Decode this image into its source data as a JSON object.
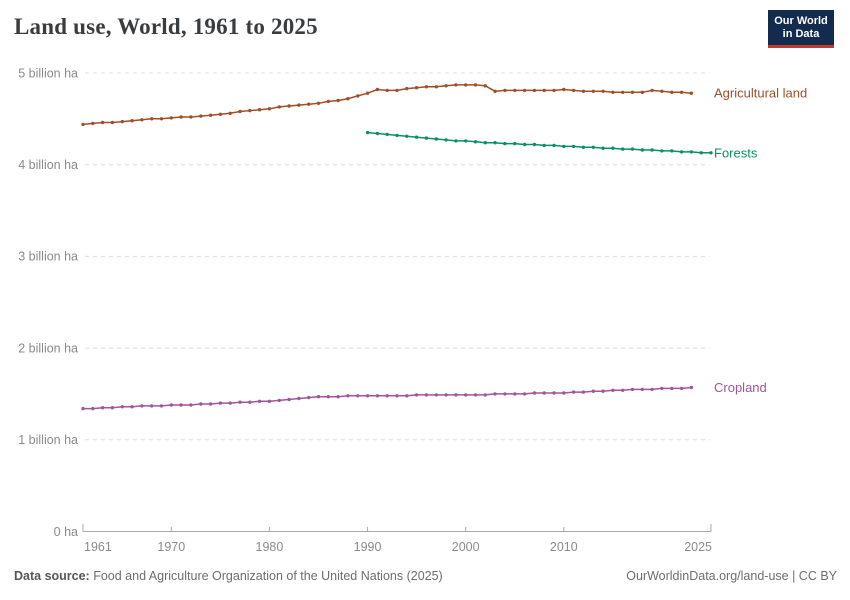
{
  "header": {
    "title": "Land use, World, 1961 to 2025",
    "logo": {
      "line1": "Our World",
      "line2": "in Data"
    }
  },
  "footer": {
    "source_label": "Data source:",
    "source_text": " Food and Agriculture Organization of the United Nations (2025)",
    "attribution": "OurWorldinData.org/land-use | CC BY"
  },
  "colors": {
    "agricultural_land": "#a04f28",
    "forests": "#0a8f66",
    "cropland": "#a2559c",
    "grid": "#dcdcdc",
    "axis": "#a9a9a9",
    "tick_text": "#8b8b8e",
    "logo_bg": "#122b4e",
    "logo_stripe": "#c0392b"
  },
  "chart_data": {
    "type": "line",
    "title": "Land use, World, 1961 to 2025",
    "unit": "billion ha",
    "xlabel": "",
    "ylabel": "",
    "x_range": [
      1961,
      2025
    ],
    "y_range_billion_ha": [
      0,
      5
    ],
    "grid": "dashed-horizontal",
    "legend_position": "right-of-line-end",
    "x_ticks": [
      1961,
      1970,
      1980,
      1990,
      2000,
      2010,
      2025
    ],
    "y_ticks": [
      {
        "value": 0,
        "label": "0 ha"
      },
      {
        "value": 1,
        "label": "1 billion ha"
      },
      {
        "value": 2,
        "label": "2 billion ha"
      },
      {
        "value": 3,
        "label": "3 billion ha"
      },
      {
        "value": 4,
        "label": "4 billion ha"
      },
      {
        "value": 5,
        "label": "5 billion ha"
      }
    ],
    "series": [
      {
        "name": "Agricultural land",
        "color": "#a04f28",
        "start_year": 1961,
        "values_billion_ha": [
          4.44,
          4.45,
          4.46,
          4.46,
          4.47,
          4.48,
          4.49,
          4.5,
          4.5,
          4.51,
          4.52,
          4.52,
          4.53,
          4.54,
          4.55,
          4.56,
          4.58,
          4.59,
          4.6,
          4.61,
          4.63,
          4.64,
          4.65,
          4.66,
          4.67,
          4.69,
          4.7,
          4.72,
          4.75,
          4.78,
          4.82,
          4.81,
          4.81,
          4.83,
          4.84,
          4.85,
          4.85,
          4.86,
          4.87,
          4.87,
          4.87,
          4.86,
          4.8,
          4.81,
          4.81,
          4.81,
          4.81,
          4.81,
          4.81,
          4.82,
          4.81,
          4.8,
          4.8,
          4.8,
          4.79,
          4.79,
          4.79,
          4.79,
          4.81,
          4.8,
          4.79,
          4.79,
          4.78
        ]
      },
      {
        "name": "Forests",
        "color": "#0a8f66",
        "start_year": 1990,
        "values_billion_ha": [
          4.35,
          4.34,
          4.33,
          4.32,
          4.31,
          4.3,
          4.29,
          4.28,
          4.27,
          4.26,
          4.26,
          4.25,
          4.24,
          4.24,
          4.23,
          4.23,
          4.22,
          4.22,
          4.21,
          4.21,
          4.2,
          4.2,
          4.19,
          4.19,
          4.18,
          4.18,
          4.17,
          4.17,
          4.16,
          4.16,
          4.15,
          4.15,
          4.14,
          4.14,
          4.13,
          4.13
        ]
      },
      {
        "name": "Cropland",
        "color": "#a2559c",
        "start_year": 1961,
        "values_billion_ha": [
          1.34,
          1.34,
          1.35,
          1.35,
          1.36,
          1.36,
          1.37,
          1.37,
          1.37,
          1.38,
          1.38,
          1.38,
          1.39,
          1.39,
          1.4,
          1.4,
          1.41,
          1.41,
          1.42,
          1.42,
          1.43,
          1.44,
          1.45,
          1.46,
          1.47,
          1.47,
          1.47,
          1.48,
          1.48,
          1.48,
          1.48,
          1.48,
          1.48,
          1.48,
          1.49,
          1.49,
          1.49,
          1.49,
          1.49,
          1.49,
          1.49,
          1.49,
          1.5,
          1.5,
          1.5,
          1.5,
          1.51,
          1.51,
          1.51,
          1.51,
          1.52,
          1.52,
          1.53,
          1.53,
          1.54,
          1.54,
          1.55,
          1.55,
          1.55,
          1.56,
          1.56,
          1.56,
          1.57
        ]
      }
    ]
  }
}
